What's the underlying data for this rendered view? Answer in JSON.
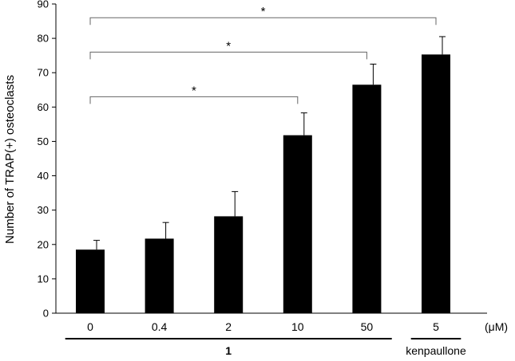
{
  "chart_data": {
    "type": "bar",
    "ylabel": "Number of TRAP(+) osteoclasts",
    "ylim": [
      0,
      90
    ],
    "yticks": [
      0,
      10,
      20,
      30,
      40,
      50,
      60,
      70,
      80,
      90
    ],
    "categories": [
      "0",
      "0.4",
      "2",
      "10",
      "50",
      "5"
    ],
    "values": [
      18.5,
      21.7,
      28.2,
      51.8,
      66.5,
      75.3
    ],
    "errors": [
      2.7,
      4.7,
      7.2,
      6.5,
      6.0,
      5.2
    ],
    "unit": "(μM)",
    "groups": [
      {
        "label": "1",
        "from": 0,
        "to": 4,
        "bold": true
      },
      {
        "label": "kenpaullone",
        "from": 5,
        "to": 5,
        "bold": false
      }
    ],
    "significance": [
      {
        "from": 0,
        "to": 3,
        "label": "*",
        "y": 63
      },
      {
        "from": 0,
        "to": 4,
        "label": "*",
        "y": 76
      },
      {
        "from": 0,
        "to": 5,
        "label": "*",
        "y": 86
      }
    ],
    "bar_color": "#000000"
  }
}
